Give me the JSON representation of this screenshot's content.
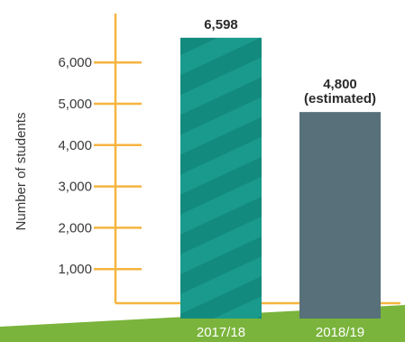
{
  "chart_data": {
    "type": "bar",
    "categories": [
      "2017/18",
      "2018/19"
    ],
    "values": [
      6598,
      4800
    ],
    "data_labels": [
      [
        "6,598"
      ],
      [
        "4,800",
        "(estimated)"
      ]
    ],
    "ylabel": "Number of students",
    "yticks": [
      1000,
      2000,
      3000,
      4000,
      5000,
      6000
    ],
    "ytick_labels": [
      "1,000",
      "2,000",
      "3,000",
      "4,000",
      "5,000",
      "6,000"
    ],
    "grid": false,
    "colors": {
      "axis": "#f6b43f",
      "bar_2017": "#1a9a8c",
      "bar_2017_stripe": "#138a7e",
      "bar_2018": "#58707a",
      "ground": "#7ab43c",
      "ground_dark": "#5e962a"
    }
  }
}
